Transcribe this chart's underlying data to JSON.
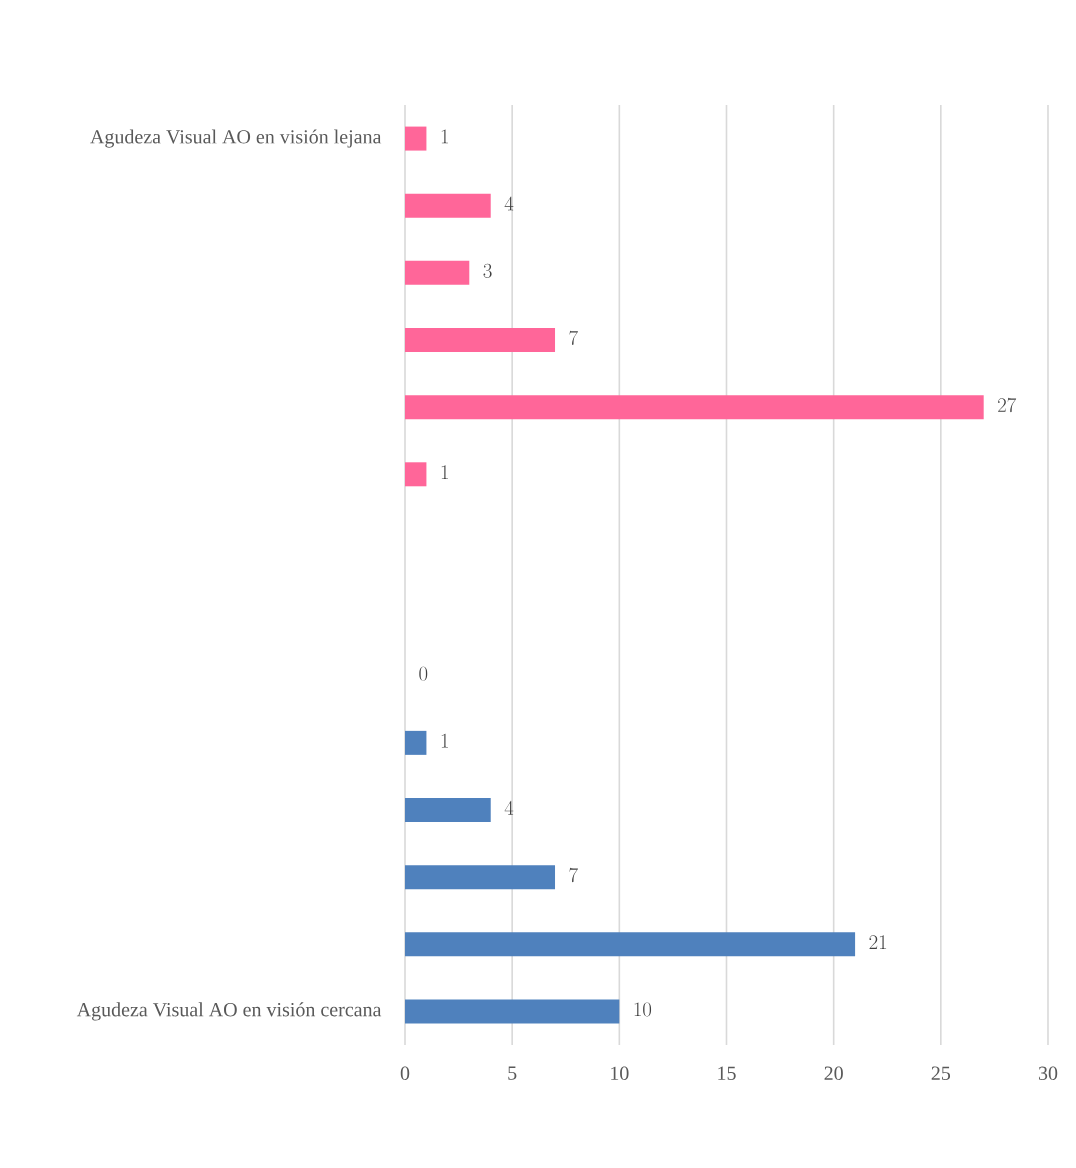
{
  "chart_data": {
    "type": "bar",
    "orientation": "horizontal",
    "categories": [
      "Agudeza Visual AO en visión lejana",
      null,
      null,
      null,
      null,
      null,
      null,
      null,
      null,
      null,
      null,
      null,
      null,
      "Agudeza Visual AO en visión cercana"
    ],
    "values": [
      1,
      4,
      3,
      7,
      27,
      1,
      null,
      null,
      0,
      1,
      4,
      7,
      21,
      10
    ],
    "colors": [
      "#ff6699",
      "#ff6699",
      "#ff6699",
      "#ff6699",
      "#ff6699",
      "#ff6699",
      null,
      null,
      "#4f81bd",
      "#4f81bd",
      "#4f81bd",
      "#4f81bd",
      "#4f81bd",
      "#4f81bd"
    ],
    "xlim": [
      0,
      30
    ],
    "xticks": [
      0,
      5,
      10,
      15,
      20,
      25,
      30
    ],
    "grid": "x",
    "data_labels": true
  }
}
